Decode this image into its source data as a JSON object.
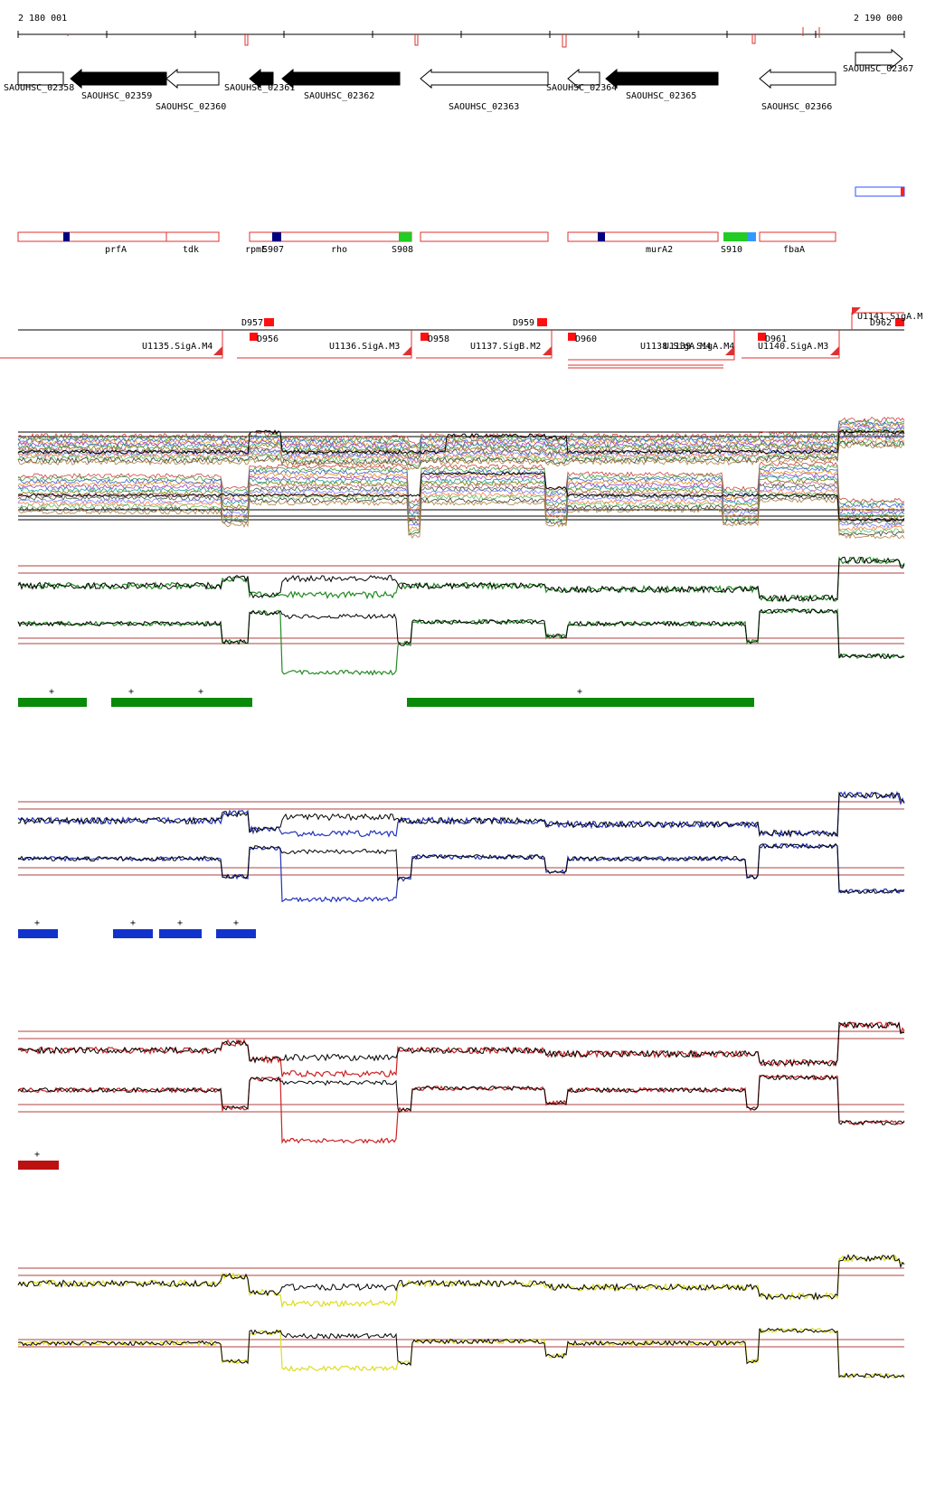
{
  "ruler": {
    "start_label": "2 180 001",
    "end_label": "2 190 000"
  },
  "genes": [
    {
      "id": "SAOUHSC_02358",
      "dir": "fwd",
      "fill": "white",
      "from": 20,
      "to": 70
    },
    {
      "id": "SAOUHSC_02359",
      "dir": "rev",
      "fill": "black",
      "from": 78,
      "to": 184
    },
    {
      "id": "SAOUHSC_02360",
      "dir": "rev",
      "fill": "white",
      "from": 184,
      "to": 242
    },
    {
      "id": "SAOUHSC_02361",
      "dir": "rev",
      "fill": "black",
      "from": 276,
      "to": 302
    },
    {
      "id": "SAOUHSC_02362",
      "dir": "rev",
      "fill": "black",
      "from": 312,
      "to": 442
    },
    {
      "id": "SAOUHSC_02363",
      "dir": "rev",
      "fill": "white",
      "from": 465,
      "to": 606
    },
    {
      "id": "SAOUHSC_02364",
      "dir": "rev",
      "fill": "white",
      "from": 628,
      "to": 663
    },
    {
      "id": "SAOUHSC_02365",
      "dir": "rev",
      "fill": "black",
      "from": 670,
      "to": 794
    },
    {
      "id": "SAOUHSC_02366",
      "dir": "rev",
      "fill": "white",
      "from": 840,
      "to": 924
    },
    {
      "id": "SAOUHSC_02367",
      "dir": "fwd",
      "fill": "white",
      "from": 946,
      "to": 998
    }
  ],
  "gene_labels": [
    {
      "text": "SAOUHSC_02358",
      "row": 1
    },
    {
      "text": "SAOUHSC_02359",
      "row": 2
    },
    {
      "text": "SAOUHSC_02360",
      "row": 3
    },
    {
      "text": "SAOUHSC_02361",
      "row": 1
    },
    {
      "text": "SAOUHSC_02362",
      "row": 2
    },
    {
      "text": "SAOUHSC_02363",
      "row": 3
    },
    {
      "text": "SAOUHSC_02364",
      "row": 1
    },
    {
      "text": "SAOUHSC_02365",
      "row": 2
    },
    {
      "text": "SAOUHSC_02366",
      "row": 3
    },
    {
      "text": "SAOUHSC_02367",
      "row": 0
    }
  ],
  "operons": [
    {
      "label": "prfA",
      "box": [
        20,
        184
      ]
    },
    {
      "label": "tdk",
      "box": [
        184,
        242
      ]
    },
    {
      "label": "rpmE",
      "box": [
        276,
        302
      ]
    },
    {
      "label": "S907",
      "box": [
        302,
        312
      ]
    },
    {
      "label": "rho",
      "box": [
        312,
        455
      ]
    },
    {
      "label": "S908",
      "box": [
        440,
        455
      ]
    },
    {
      "label": "murA2",
      "box": [
        628,
        794
      ]
    },
    {
      "label": "S910",
      "box": [
        800,
        836
      ]
    },
    {
      "label": "fbaA",
      "box": [
        840,
        924
      ]
    }
  ],
  "features": [
    {
      "label": "D957"
    },
    {
      "label": "D956"
    },
    {
      "label": "D958"
    },
    {
      "label": "D959"
    },
    {
      "label": "D960"
    },
    {
      "label": "D961"
    },
    {
      "label": "D962"
    },
    {
      "label": "U1135.SigA.M4"
    },
    {
      "label": "U1136.SigA.M3"
    },
    {
      "label": "U1137.SigB.M2"
    },
    {
      "label": "U1138.SigA.M4"
    },
    {
      "label": "U1139.SigA.M4"
    },
    {
      "label": "U1140.SigA.M3"
    },
    {
      "label": "U1141.SigA.M"
    }
  ],
  "segment_marker": "+",
  "colors": {
    "operon_border": "#e03030",
    "sigma_box": "#000080",
    "green_feature": "#22cc22",
    "blue_feature": "#3399ff",
    "threshold_line": "#b04040",
    "track_green": "#228b22",
    "track_blue": "#2233bb",
    "track_red": "#cc2222",
    "track_yellow": "#dddd22",
    "seg_green": "#0a8a0a",
    "seg_blue": "#1133cc",
    "seg_red": "#bb1111"
  }
}
